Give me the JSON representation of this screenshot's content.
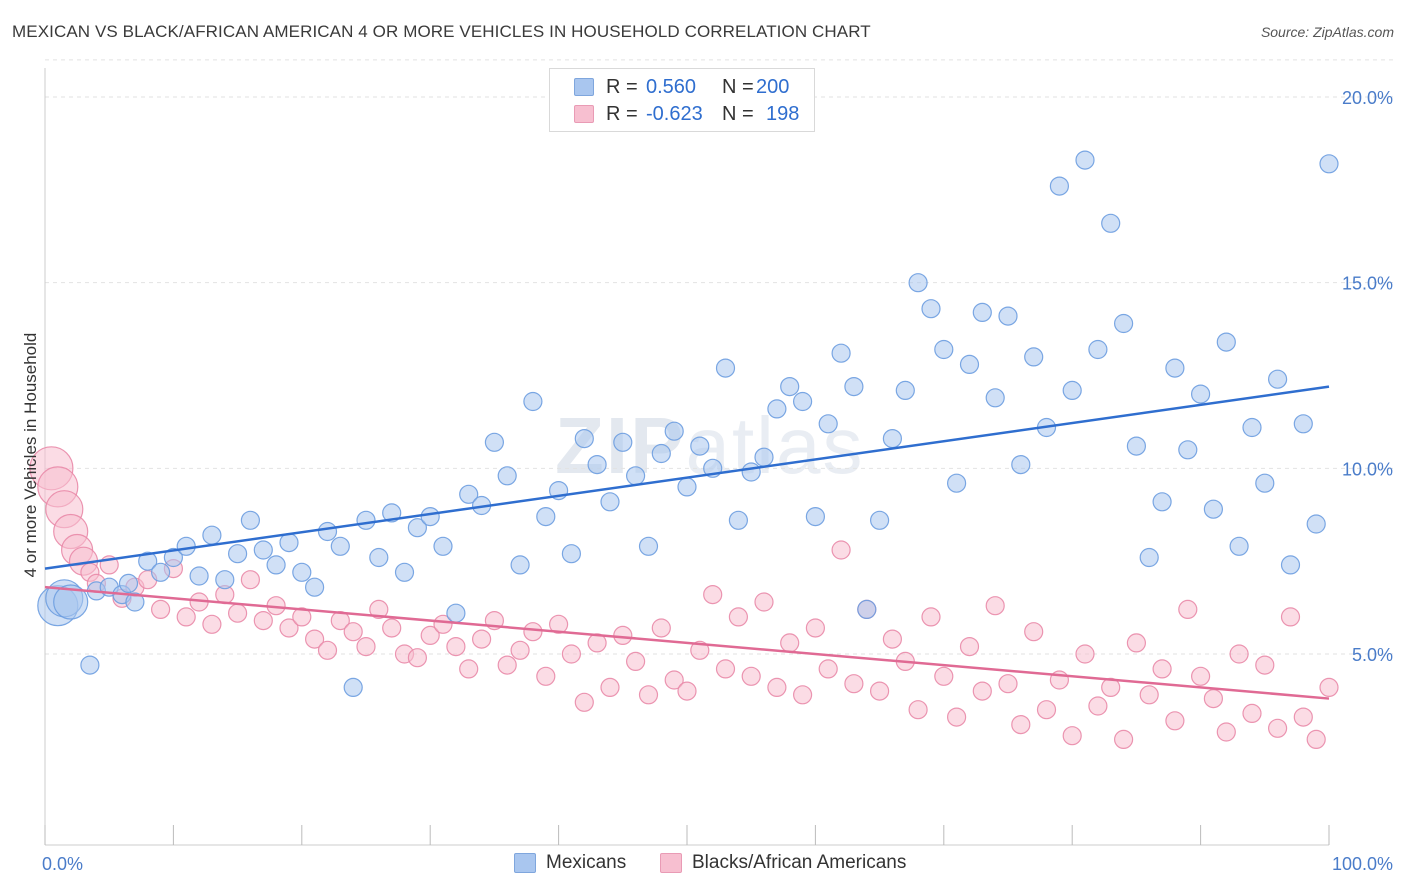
{
  "title": "MEXICAN VS BLACK/AFRICAN AMERICAN 4 OR MORE VEHICLES IN HOUSEHOLD CORRELATION CHART",
  "source": "Source: ZipAtlas.com",
  "watermark": {
    "bold": "ZIP",
    "light": "atlas"
  },
  "legend_top": {
    "rows": [
      {
        "r_label": "R =",
        "r_value": "0.560",
        "n_label": "N =",
        "n_value": "200",
        "color": "#a9c6ef"
      },
      {
        "r_label": "R =",
        "r_value": "-0.623",
        "n_label": "N =",
        "n_value": "198",
        "color": "#f7bfd0"
      }
    ]
  },
  "legend_bottom": [
    {
      "label": "Mexicans",
      "color": "#a9c6ef"
    },
    {
      "label": "Blacks/African Americans",
      "color": "#f7bfd0"
    }
  ],
  "chart_data": {
    "type": "scatter",
    "title": "MEXICAN VS BLACK/AFRICAN AMERICAN 4 OR MORE VEHICLES IN HOUSEHOLD CORRELATION CHART",
    "xlabel": "",
    "ylabel": "4 or more Vehicles in Household",
    "xlim": [
      0,
      100
    ],
    "ylim": [
      0,
      21
    ],
    "x_tick_labels": [
      "0.0%",
      "100.0%"
    ],
    "y_ticks": [
      5,
      10,
      15,
      20
    ],
    "y_tick_labels": [
      "5.0%",
      "10.0%",
      "15.0%",
      "20.0%"
    ],
    "grid": true,
    "series": [
      {
        "name": "Mexicans",
        "color": "#6d9de0",
        "fill": "#a9c6ef",
        "R": 0.56,
        "N": 200,
        "trend": {
          "x": [
            0,
            100
          ],
          "y": [
            7.3,
            12.2
          ]
        },
        "points": [
          [
            1.0,
            6.3
          ],
          [
            1.5,
            6.5
          ],
          [
            2.0,
            6.4
          ],
          [
            3.5,
            4.7
          ],
          [
            4.0,
            6.7
          ],
          [
            5.0,
            6.8
          ],
          [
            6.0,
            6.6
          ],
          [
            6.5,
            6.9
          ],
          [
            7.0,
            6.4
          ],
          [
            8.0,
            7.5
          ],
          [
            9.0,
            7.2
          ],
          [
            10.0,
            7.6
          ],
          [
            11.0,
            7.9
          ],
          [
            12.0,
            7.1
          ],
          [
            13.0,
            8.2
          ],
          [
            14.0,
            7.0
          ],
          [
            15.0,
            7.7
          ],
          [
            16.0,
            8.6
          ],
          [
            17.0,
            7.8
          ],
          [
            18.0,
            7.4
          ],
          [
            19.0,
            8.0
          ],
          [
            20.0,
            7.2
          ],
          [
            21.0,
            6.8
          ],
          [
            22.0,
            8.3
          ],
          [
            23.0,
            7.9
          ],
          [
            24.0,
            4.1
          ],
          [
            25.0,
            8.6
          ],
          [
            26.0,
            7.6
          ],
          [
            27.0,
            8.8
          ],
          [
            28.0,
            7.2
          ],
          [
            29.0,
            8.4
          ],
          [
            30.0,
            8.7
          ],
          [
            31.0,
            7.9
          ],
          [
            32.0,
            6.1
          ],
          [
            33.0,
            9.3
          ],
          [
            34.0,
            9.0
          ],
          [
            35.0,
            10.7
          ],
          [
            36.0,
            9.8
          ],
          [
            37.0,
            7.4
          ],
          [
            38.0,
            11.8
          ],
          [
            39.0,
            8.7
          ],
          [
            40.0,
            9.4
          ],
          [
            41.0,
            7.7
          ],
          [
            42.0,
            10.8
          ],
          [
            43.0,
            10.1
          ],
          [
            44.0,
            9.1
          ],
          [
            45.0,
            10.7
          ],
          [
            46.0,
            9.8
          ],
          [
            47.0,
            7.9
          ],
          [
            48.0,
            10.4
          ],
          [
            49.0,
            11.0
          ],
          [
            50.0,
            9.5
          ],
          [
            51.0,
            10.6
          ],
          [
            52.0,
            10.0
          ],
          [
            53.0,
            12.7
          ],
          [
            54.0,
            8.6
          ],
          [
            55.0,
            9.9
          ],
          [
            56.0,
            10.3
          ],
          [
            57.0,
            11.6
          ],
          [
            58.0,
            12.2
          ],
          [
            59.0,
            11.8
          ],
          [
            60.0,
            8.7
          ],
          [
            61.0,
            11.2
          ],
          [
            62.0,
            13.1
          ],
          [
            63.0,
            12.2
          ],
          [
            64.0,
            6.2
          ],
          [
            65.0,
            8.6
          ],
          [
            66.0,
            10.8
          ],
          [
            67.0,
            12.1
          ],
          [
            68.0,
            15.0
          ],
          [
            69.0,
            14.3
          ],
          [
            70.0,
            13.2
          ],
          [
            71.0,
            9.6
          ],
          [
            72.0,
            12.8
          ],
          [
            73.0,
            14.2
          ],
          [
            74.0,
            11.9
          ],
          [
            75.0,
            14.1
          ],
          [
            76.0,
            10.1
          ],
          [
            77.0,
            13.0
          ],
          [
            78.0,
            11.1
          ],
          [
            79.0,
            17.6
          ],
          [
            80.0,
            12.1
          ],
          [
            81.0,
            18.3
          ],
          [
            82.0,
            13.2
          ],
          [
            83.0,
            16.6
          ],
          [
            84.0,
            13.9
          ],
          [
            85.0,
            10.6
          ],
          [
            86.0,
            7.6
          ],
          [
            87.0,
            9.1
          ],
          [
            88.0,
            12.7
          ],
          [
            89.0,
            10.5
          ],
          [
            90.0,
            12.0
          ],
          [
            91.0,
            8.9
          ],
          [
            92.0,
            13.4
          ],
          [
            93.0,
            7.9
          ],
          [
            94.0,
            11.1
          ],
          [
            95.0,
            9.6
          ],
          [
            96.0,
            12.4
          ],
          [
            97.0,
            7.4
          ],
          [
            98.0,
            11.2
          ],
          [
            99.0,
            8.5
          ],
          [
            100.0,
            18.2
          ]
        ]
      },
      {
        "name": "Blacks/African Americans",
        "color": "#e98aa8",
        "fill": "#f7bfd0",
        "R": -0.623,
        "N": 198,
        "trend": {
          "x": [
            0,
            100
          ],
          "y": [
            6.8,
            3.8
          ]
        },
        "points": [
          [
            0.5,
            10.0
          ],
          [
            1.0,
            9.5
          ],
          [
            1.5,
            8.9
          ],
          [
            2.0,
            8.3
          ],
          [
            2.5,
            7.8
          ],
          [
            3.0,
            7.5
          ],
          [
            3.5,
            7.2
          ],
          [
            4.0,
            6.9
          ],
          [
            5.0,
            7.4
          ],
          [
            6.0,
            6.5
          ],
          [
            7.0,
            6.8
          ],
          [
            8.0,
            7.0
          ],
          [
            9.0,
            6.2
          ],
          [
            10.0,
            7.3
          ],
          [
            11.0,
            6.0
          ],
          [
            12.0,
            6.4
          ],
          [
            13.0,
            5.8
          ],
          [
            14.0,
            6.6
          ],
          [
            15.0,
            6.1
          ],
          [
            16.0,
            7.0
          ],
          [
            17.0,
            5.9
          ],
          [
            18.0,
            6.3
          ],
          [
            19.0,
            5.7
          ],
          [
            20.0,
            6.0
          ],
          [
            21.0,
            5.4
          ],
          [
            22.0,
            5.1
          ],
          [
            23.0,
            5.9
          ],
          [
            24.0,
            5.6
          ],
          [
            25.0,
            5.2
          ],
          [
            26.0,
            6.2
          ],
          [
            27.0,
            5.7
          ],
          [
            28.0,
            5.0
          ],
          [
            29.0,
            4.9
          ],
          [
            30.0,
            5.5
          ],
          [
            31.0,
            5.8
          ],
          [
            32.0,
            5.2
          ],
          [
            33.0,
            4.6
          ],
          [
            34.0,
            5.4
          ],
          [
            35.0,
            5.9
          ],
          [
            36.0,
            4.7
          ],
          [
            37.0,
            5.1
          ],
          [
            38.0,
            5.6
          ],
          [
            39.0,
            4.4
          ],
          [
            40.0,
            5.8
          ],
          [
            41.0,
            5.0
          ],
          [
            42.0,
            3.7
          ],
          [
            43.0,
            5.3
          ],
          [
            44.0,
            4.1
          ],
          [
            45.0,
            5.5
          ],
          [
            46.0,
            4.8
          ],
          [
            47.0,
            3.9
          ],
          [
            48.0,
            5.7
          ],
          [
            49.0,
            4.3
          ],
          [
            50.0,
            4.0
          ],
          [
            51.0,
            5.1
          ],
          [
            52.0,
            6.6
          ],
          [
            53.0,
            4.6
          ],
          [
            54.0,
            6.0
          ],
          [
            55.0,
            4.4
          ],
          [
            56.0,
            6.4
          ],
          [
            57.0,
            4.1
          ],
          [
            58.0,
            5.3
          ],
          [
            59.0,
            3.9
          ],
          [
            60.0,
            5.7
          ],
          [
            61.0,
            4.6
          ],
          [
            62.0,
            7.8
          ],
          [
            63.0,
            4.2
          ],
          [
            64.0,
            6.2
          ],
          [
            65.0,
            4.0
          ],
          [
            66.0,
            5.4
          ],
          [
            67.0,
            4.8
          ],
          [
            68.0,
            3.5
          ],
          [
            69.0,
            6.0
          ],
          [
            70.0,
            4.4
          ],
          [
            71.0,
            3.3
          ],
          [
            72.0,
            5.2
          ],
          [
            73.0,
            4.0
          ],
          [
            74.0,
            6.3
          ],
          [
            75.0,
            4.2
          ],
          [
            76.0,
            3.1
          ],
          [
            77.0,
            5.6
          ],
          [
            78.0,
            3.5
          ],
          [
            79.0,
            4.3
          ],
          [
            80.0,
            2.8
          ],
          [
            81.0,
            5.0
          ],
          [
            82.0,
            3.6
          ],
          [
            83.0,
            4.1
          ],
          [
            84.0,
            2.7
          ],
          [
            85.0,
            5.3
          ],
          [
            86.0,
            3.9
          ],
          [
            87.0,
            4.6
          ],
          [
            88.0,
            3.2
          ],
          [
            89.0,
            6.2
          ],
          [
            90.0,
            4.4
          ],
          [
            91.0,
            3.8
          ],
          [
            92.0,
            2.9
          ],
          [
            93.0,
            5.0
          ],
          [
            94.0,
            3.4
          ],
          [
            95.0,
            4.7
          ],
          [
            96.0,
            3.0
          ],
          [
            97.0,
            6.0
          ],
          [
            98.0,
            3.3
          ],
          [
            99.0,
            2.7
          ],
          [
            100.0,
            4.1
          ]
        ]
      }
    ]
  }
}
